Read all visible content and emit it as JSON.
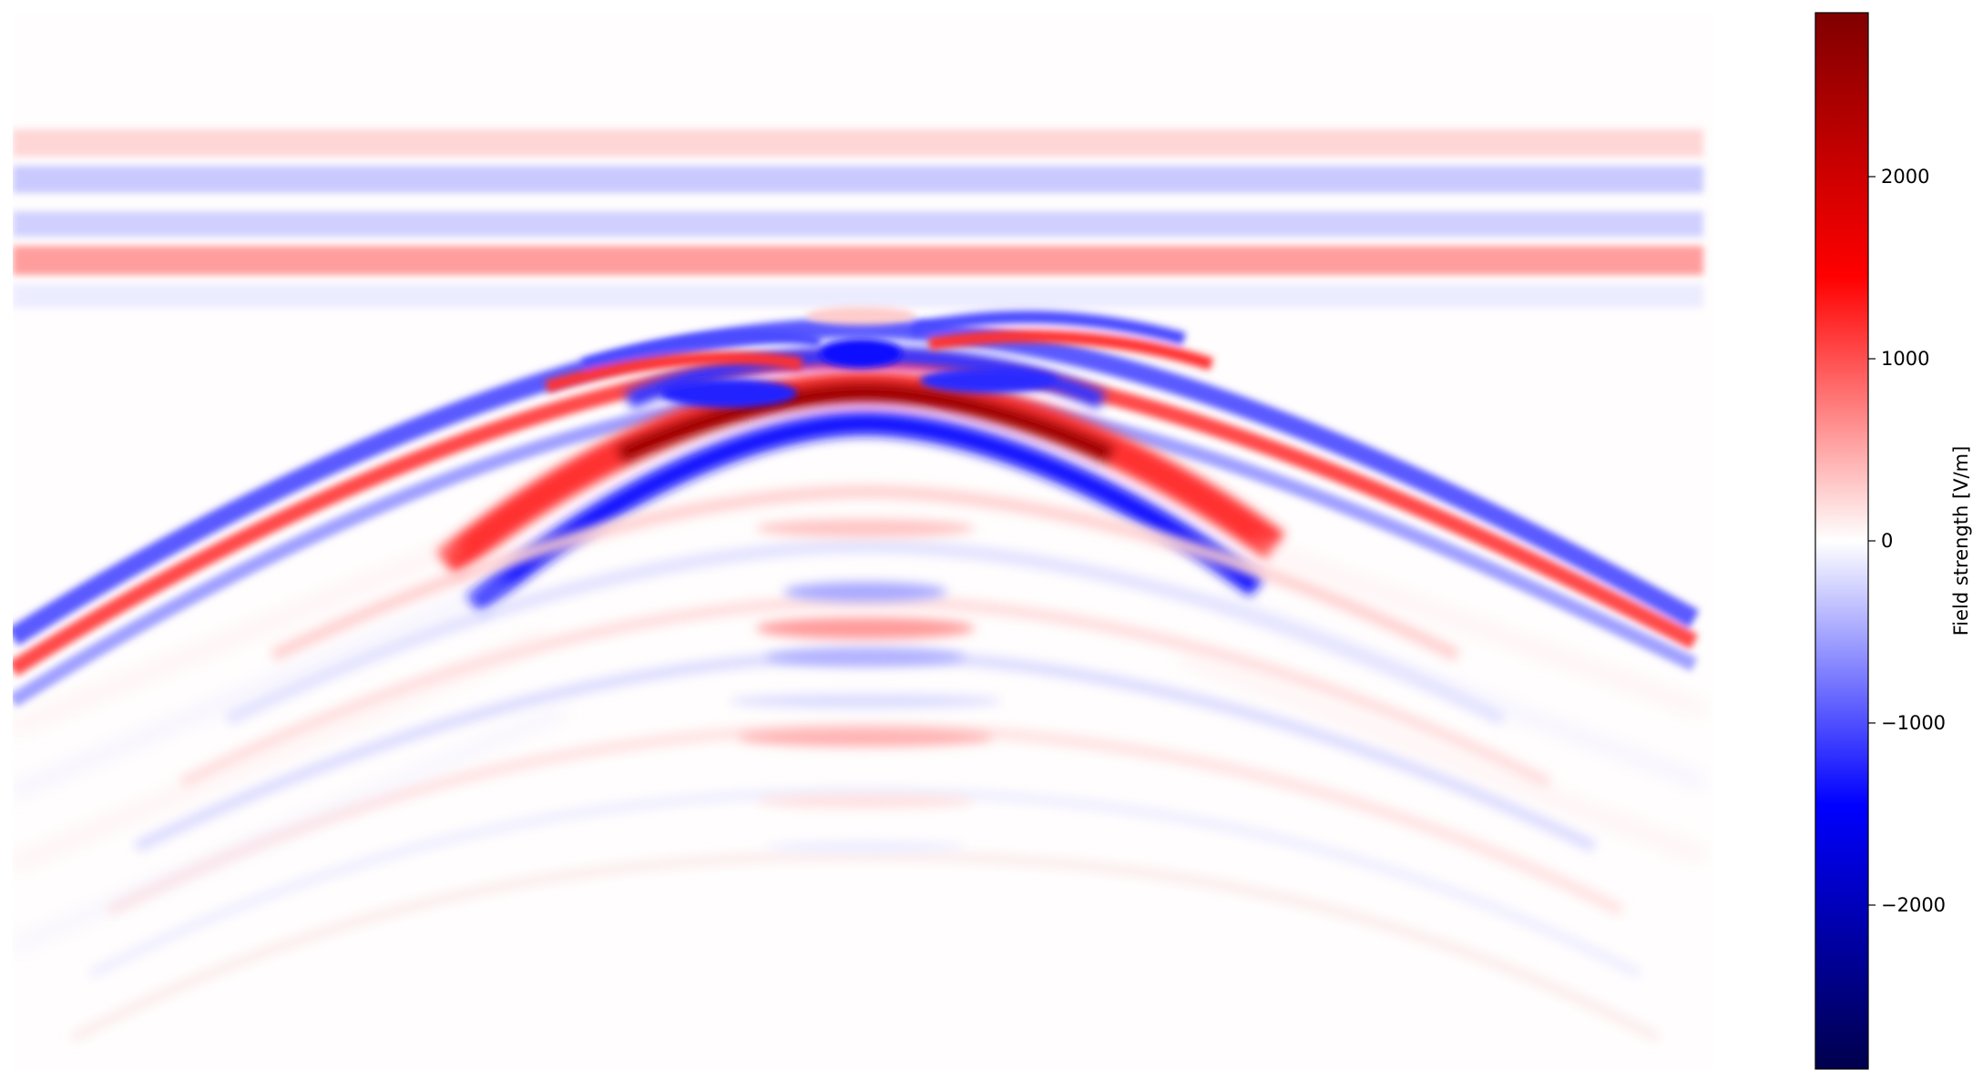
{
  "chart_data": {
    "type": "heatmap",
    "title": "",
    "xlabel": "",
    "ylabel": "",
    "axes_visible": false,
    "colormap": "seismic",
    "colormap_stops": [
      "#00004c",
      "#0000ff",
      "#ffffff",
      "#ff0000",
      "#800000"
    ],
    "colorbar": {
      "label": "Field strength [V/m]",
      "vmin": -2900,
      "vmax": 2900,
      "ticks": [
        -2000,
        -1000,
        0,
        1000,
        2000
      ],
      "tick_labels": [
        "−2000",
        "−1000",
        "0",
        "1000",
        "2000"
      ],
      "placement": "right"
    },
    "features": {
      "horizontal_bands": [
        {
          "name": "direct wave band 1",
          "value": 350
        },
        {
          "name": "direct wave band 2",
          "value": -450
        },
        {
          "name": "direct wave band 3",
          "value": -400
        },
        {
          "name": "direct wave band 4",
          "value": 900
        },
        {
          "name": "direct wave band 5",
          "value": -100
        }
      ],
      "hyperbolas": [
        {
          "name": "primary reflection",
          "peak_value": 2900
        },
        {
          "name": "outer reflection",
          "peak_value": 1400
        },
        {
          "name": "multiple reflections",
          "peak_value": 500
        }
      ]
    }
  }
}
